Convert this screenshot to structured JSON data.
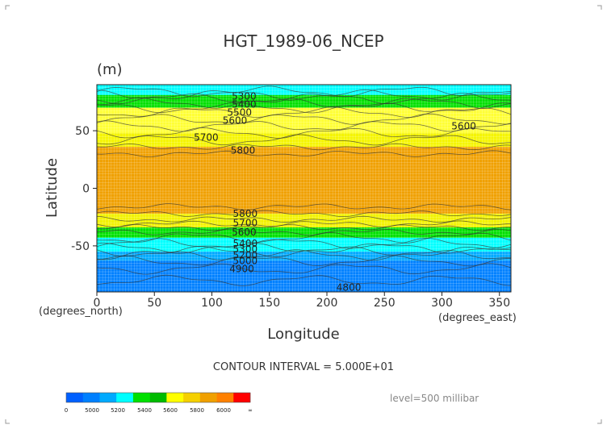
{
  "chart_data": {
    "type": "heatmap",
    "title": "HGT_1989-06_NCEP",
    "units_label": "(m)",
    "xlabel": "Longitude",
    "ylabel": "Latitude",
    "x_unit_label": "(degrees_east)",
    "y_unit_label": "(degrees_north)",
    "xlim": [
      0,
      360
    ],
    "ylim": [
      -90,
      90
    ],
    "x_ticks": [
      "0",
      "50",
      "100",
      "150",
      "200",
      "250",
      "300",
      "350"
    ],
    "y_ticks": [
      "50",
      "0",
      "-50"
    ],
    "contour_labels": [
      {
        "value": "5300",
        "lon": 128,
        "lat": 80
      },
      {
        "value": "5400",
        "lon": 128,
        "lat": 73
      },
      {
        "value": "5500",
        "lon": 124,
        "lat": 66
      },
      {
        "value": "5600",
        "lon": 120,
        "lat": 59
      },
      {
        "value": "5700",
        "lon": 95,
        "lat": 44
      },
      {
        "value": "5800",
        "lon": 127,
        "lat": 33
      },
      {
        "value": "5600",
        "lon": 319,
        "lat": 54
      },
      {
        "value": "5800",
        "lon": 129,
        "lat": -22
      },
      {
        "value": "5700",
        "lon": 129,
        "lat": -30
      },
      {
        "value": "5600",
        "lon": 128,
        "lat": -38
      },
      {
        "value": "5400",
        "lon": 129,
        "lat": -48
      },
      {
        "value": "5300",
        "lon": 129,
        "lat": -53
      },
      {
        "value": "5200",
        "lon": 129,
        "lat": -58
      },
      {
        "value": "5000",
        "lon": 129,
        "lat": -63
      },
      {
        "value": "4900",
        "lon": 126,
        "lat": -70
      },
      {
        "value": "4800",
        "lon": 219,
        "lat": -86
      }
    ],
    "bands": [
      {
        "lat_top": 90,
        "lat_bottom": 81,
        "color": "#00ffff"
      },
      {
        "lat_top": 81,
        "lat_bottom": 70,
        "color": "#00e000"
      },
      {
        "lat_top": 70,
        "lat_bottom": 48,
        "color": "#ffff33"
      },
      {
        "lat_top": 48,
        "lat_bottom": 36,
        "color": "#f5f500"
      },
      {
        "lat_top": 36,
        "lat_bottom": -22,
        "color": "#f0a000"
      },
      {
        "lat_top": -22,
        "lat_bottom": -34,
        "color": "#f2f200"
      },
      {
        "lat_top": -34,
        "lat_bottom": -43,
        "color": "#00e000"
      },
      {
        "lat_top": -43,
        "lat_bottom": -55,
        "color": "#00ffff"
      },
      {
        "lat_top": -55,
        "lat_bottom": -63,
        "color": "#00aaff"
      },
      {
        "lat_top": -63,
        "lat_bottom": -90,
        "color": "#0080ff"
      }
    ],
    "contour_interval_text": "CONTOUR INTERVAL = 5.000E+01",
    "level_text": "level=500 millibar",
    "colorbar": {
      "colors": [
        "#0060ff",
        "#0080ff",
        "#00aaff",
        "#00ffff",
        "#00e000",
        "#00bb00",
        "#ffff00",
        "#f5d000",
        "#f0a000",
        "#ff8000",
        "#ff0000"
      ],
      "labels": [
        "0",
        "5000",
        "5200",
        "5400",
        "5600",
        "5800",
        "6000",
        "∞"
      ]
    }
  }
}
